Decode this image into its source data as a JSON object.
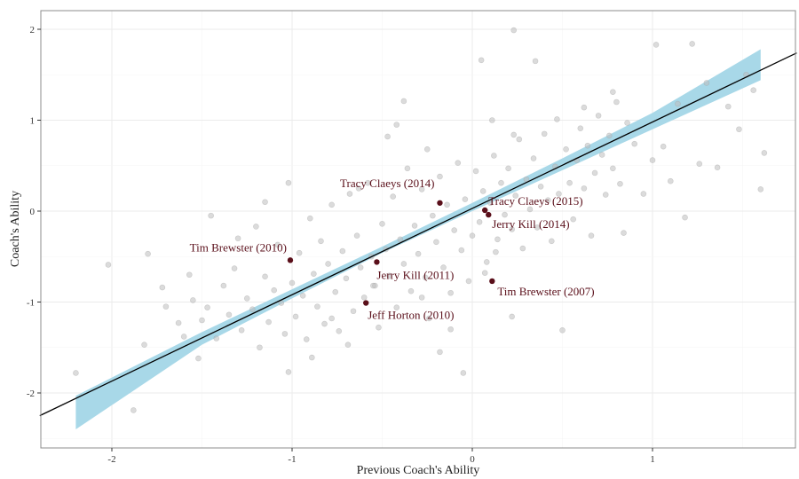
{
  "chart_data": {
    "type": "scatter",
    "title": "",
    "xlabel": "Previous Coach's Ability",
    "ylabel": "Coach's Ability",
    "xlim": [
      -2.4,
      1.8
    ],
    "ylim": [
      -2.6,
      2.1
    ],
    "x_ticks": [
      -2,
      -1,
      0,
      1
    ],
    "x_tick_labels": [
      "-2",
      "-1",
      "0",
      "1"
    ],
    "y_ticks": [
      -2,
      -1,
      0,
      1,
      2
    ],
    "y_tick_labels": [
      "-2",
      "-1",
      "0",
      "1",
      "2"
    ],
    "grid": true,
    "colors": {
      "points": "#bdbdbd",
      "highlight": "#5a0f1a",
      "ribbon": "#a8d8e8",
      "fit_line": "#000000",
      "panel_border": "#8c8c8c"
    },
    "fit_line": {
      "intercept": 0.03,
      "slope": 0.95
    },
    "ribbon": {
      "x": [
        -2.2,
        -1.5,
        -1.0,
        -0.5,
        0.0,
        0.5,
        1.0,
        1.6
      ],
      "lower": [
        -2.4,
        -1.47,
        -0.96,
        -0.46,
        0.0,
        0.45,
        0.9,
        1.44
      ],
      "upper": [
        -2.03,
        -1.33,
        -0.86,
        -0.39,
        0.09,
        0.58,
        1.08,
        1.78
      ]
    },
    "highlighted": [
      {
        "label": "Tracy Claeys (2014)",
        "x": -0.18,
        "y": 0.09
      },
      {
        "label": "Tracy Claeys (2015)",
        "x": 0.07,
        "y": 0.01
      },
      {
        "label": "Jerry Kill (2014)",
        "x": 0.09,
        "y": -0.04
      },
      {
        "label": "Tim Brewster (2010)",
        "x": -1.01,
        "y": -0.54
      },
      {
        "label": "Jerry Kill (2011)",
        "x": -0.53,
        "y": -0.56
      },
      {
        "label": "Tim Brewster (2007)",
        "x": 0.11,
        "y": -0.77
      },
      {
        "label": "Jeff Horton (2010)",
        "x": -0.59,
        "y": -1.01
      }
    ],
    "points": [
      [
        -2.2,
        -1.78
      ],
      [
        -2.02,
        -0.59
      ],
      [
        -1.88,
        -2.19
      ],
      [
        -1.82,
        -1.47
      ],
      [
        -1.8,
        -0.47
      ],
      [
        -1.72,
        -0.84
      ],
      [
        -1.7,
        -1.05
      ],
      [
        -1.63,
        -1.23
      ],
      [
        -1.6,
        -1.38
      ],
      [
        -1.57,
        -0.7
      ],
      [
        -1.55,
        -0.98
      ],
      [
        -1.52,
        -1.62
      ],
      [
        -1.5,
        -1.2
      ],
      [
        -1.47,
        -1.06
      ],
      [
        -1.45,
        -0.05
      ],
      [
        -1.42,
        -1.4
      ],
      [
        -1.38,
        -0.82
      ],
      [
        -1.35,
        -1.14
      ],
      [
        -1.32,
        -0.63
      ],
      [
        -1.28,
        -1.31
      ],
      [
        -1.25,
        -0.96
      ],
      [
        -1.22,
        -1.08
      ],
      [
        -1.2,
        -0.17
      ],
      [
        -1.18,
        -1.5
      ],
      [
        -1.15,
        -0.72
      ],
      [
        -1.13,
        -1.22
      ],
      [
        -1.1,
        -0.87
      ],
      [
        -1.08,
        -0.37
      ],
      [
        -1.06,
        -1.01
      ],
      [
        -1.04,
        -1.35
      ],
      [
        -1.02,
        0.31
      ],
      [
        -1.0,
        -0.79
      ],
      [
        -0.98,
        -1.16
      ],
      [
        -0.96,
        -0.46
      ],
      [
        -0.94,
        -0.93
      ],
      [
        -0.92,
        -1.41
      ],
      [
        -0.9,
        -0.08
      ],
      [
        -0.88,
        -0.69
      ],
      [
        -0.86,
        -1.05
      ],
      [
        -0.84,
        -0.33
      ],
      [
        -0.82,
        -1.24
      ],
      [
        -0.8,
        -0.58
      ],
      [
        -0.78,
        0.07
      ],
      [
        -0.76,
        -0.89
      ],
      [
        -0.74,
        -1.32
      ],
      [
        -0.72,
        -0.44
      ],
      [
        -0.7,
        -0.74
      ],
      [
        -0.68,
        0.19
      ],
      [
        -0.66,
        -1.1
      ],
      [
        -0.64,
        -0.27
      ],
      [
        -0.62,
        -0.62
      ],
      [
        -0.6,
        -0.95
      ],
      [
        -0.58,
        0.31
      ],
      [
        -0.56,
        -0.5
      ],
      [
        -0.54,
        -0.82
      ],
      [
        -0.52,
        -1.28
      ],
      [
        -0.5,
        -0.14
      ],
      [
        -0.48,
        -0.42
      ],
      [
        -0.46,
        -0.71
      ],
      [
        -0.44,
        0.16
      ],
      [
        -0.42,
        -1.06
      ],
      [
        -0.4,
        -0.31
      ],
      [
        -0.38,
        -0.58
      ],
      [
        -0.36,
        0.47
      ],
      [
        -0.34,
        -0.88
      ],
      [
        -0.32,
        -0.16
      ],
      [
        -0.3,
        -0.47
      ],
      [
        -0.28,
        0.24
      ],
      [
        -0.26,
        -0.73
      ],
      [
        -0.24,
        -1.18
      ],
      [
        -0.22,
        -0.05
      ],
      [
        -0.2,
        -0.34
      ],
      [
        -0.18,
        0.38
      ],
      [
        -0.16,
        -0.62
      ],
      [
        -0.14,
        0.07
      ],
      [
        -0.12,
        -0.9
      ],
      [
        -0.1,
        -0.21
      ],
      [
        -0.08,
        0.53
      ],
      [
        -0.06,
        -0.43
      ],
      [
        -0.04,
        0.13
      ],
      [
        -0.02,
        -0.77
      ],
      [
        0.0,
        -0.27
      ],
      [
        0.02,
        0.44
      ],
      [
        0.04,
        -0.12
      ],
      [
        0.06,
        0.22
      ],
      [
        0.08,
        -0.56
      ],
      [
        0.1,
        0.09
      ],
      [
        0.12,
        0.61
      ],
      [
        0.14,
        -0.31
      ],
      [
        0.16,
        0.31
      ],
      [
        0.18,
        -0.04
      ],
      [
        0.2,
        0.47
      ],
      [
        0.22,
        -0.2
      ],
      [
        0.24,
        0.17
      ],
      [
        0.26,
        0.79
      ],
      [
        0.28,
        -0.41
      ],
      [
        0.3,
        0.35
      ],
      [
        0.32,
        0.02
      ],
      [
        0.34,
        0.58
      ],
      [
        0.36,
        -0.18
      ],
      [
        0.38,
        0.27
      ],
      [
        0.4,
        0.85
      ],
      [
        0.42,
        0.12
      ],
      [
        0.44,
        -0.33
      ],
      [
        0.46,
        0.49
      ],
      [
        0.48,
        0.19
      ],
      [
        0.5,
        -1.31
      ],
      [
        0.52,
        0.68
      ],
      [
        0.54,
        0.31
      ],
      [
        0.56,
        -0.09
      ],
      [
        0.58,
        0.56
      ],
      [
        0.6,
        0.91
      ],
      [
        0.62,
        0.25
      ],
      [
        0.64,
        0.72
      ],
      [
        0.66,
        -0.27
      ],
      [
        0.68,
        0.42
      ],
      [
        0.7,
        1.05
      ],
      [
        0.72,
        0.62
      ],
      [
        0.74,
        0.18
      ],
      [
        0.76,
        0.83
      ],
      [
        0.78,
        0.47
      ],
      [
        0.8,
        1.2
      ],
      [
        0.82,
        0.3
      ],
      [
        0.84,
        -0.24
      ],
      [
        0.86,
        0.97
      ],
      [
        0.9,
        0.74
      ],
      [
        0.95,
        0.19
      ],
      [
        1.0,
        0.56
      ],
      [
        1.02,
        1.83
      ],
      [
        1.06,
        0.71
      ],
      [
        1.1,
        0.33
      ],
      [
        1.14,
        1.18
      ],
      [
        1.18,
        -0.07
      ],
      [
        1.22,
        1.84
      ],
      [
        1.26,
        0.52
      ],
      [
        1.3,
        1.41
      ],
      [
        1.36,
        0.48
      ],
      [
        1.42,
        1.15
      ],
      [
        1.48,
        0.9
      ],
      [
        1.52,
        1.5
      ],
      [
        1.56,
        1.33
      ],
      [
        1.6,
        0.24
      ],
      [
        1.62,
        0.64
      ],
      [
        0.23,
        1.99
      ],
      [
        0.05,
        1.66
      ],
      [
        0.35,
        1.65
      ],
      [
        -0.38,
        1.21
      ],
      [
        -0.42,
        0.95
      ],
      [
        0.11,
        1.0
      ],
      [
        0.23,
        0.84
      ],
      [
        -0.55,
        -0.82
      ],
      [
        -0.28,
        -0.95
      ],
      [
        -0.12,
        -1.3
      ],
      [
        -0.05,
        -1.78
      ],
      [
        -0.18,
        -1.55
      ],
      [
        -0.69,
        -1.47
      ],
      [
        -0.78,
        -1.18
      ],
      [
        -0.89,
        -1.61
      ],
      [
        -1.02,
        -1.77
      ],
      [
        0.22,
        -1.16
      ],
      [
        0.07,
        -0.68
      ],
      [
        0.13,
        -0.45
      ],
      [
        -1.3,
        -0.3
      ],
      [
        -1.15,
        0.1
      ],
      [
        -0.63,
        0.25
      ],
      [
        -0.47,
        0.82
      ],
      [
        -0.25,
        0.68
      ],
      [
        0.47,
        1.01
      ],
      [
        0.62,
        1.14
      ],
      [
        0.78,
        1.31
      ]
    ]
  }
}
